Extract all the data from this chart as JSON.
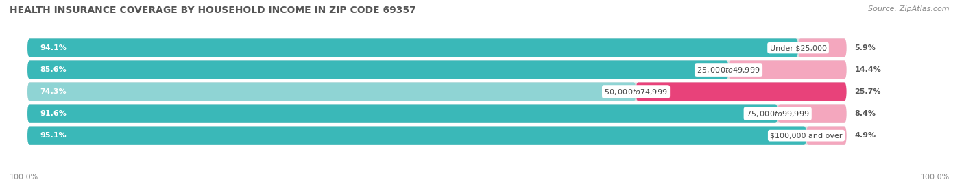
{
  "title": "HEALTH INSURANCE COVERAGE BY HOUSEHOLD INCOME IN ZIP CODE 69357",
  "source": "Source: ZipAtlas.com",
  "categories": [
    "Under $25,000",
    "$25,000 to $49,999",
    "$50,000 to $74,999",
    "$75,000 to $99,999",
    "$100,000 and over"
  ],
  "with_coverage": [
    94.1,
    85.6,
    74.3,
    91.6,
    95.1
  ],
  "without_coverage": [
    5.9,
    14.4,
    25.7,
    8.4,
    4.9
  ],
  "coverage_color_row0": "#3ab8b8",
  "coverage_color_row1": "#3ab8b8",
  "coverage_color_row2": "#8fd4d4",
  "coverage_color_row3": "#3ab8b8",
  "coverage_color_row4": "#3ab8b8",
  "no_coverage_color_row0": "#f4a7be",
  "no_coverage_color_row1": "#f4a7be",
  "no_coverage_color_row2": "#e8427a",
  "no_coverage_color_row3": "#f4a7be",
  "no_coverage_color_row4": "#f4a7be",
  "row_bg_color": "#e8e8e8",
  "title_fontsize": 10,
  "source_fontsize": 8,
  "legend_fontsize": 9,
  "footer_label": "100.0%"
}
